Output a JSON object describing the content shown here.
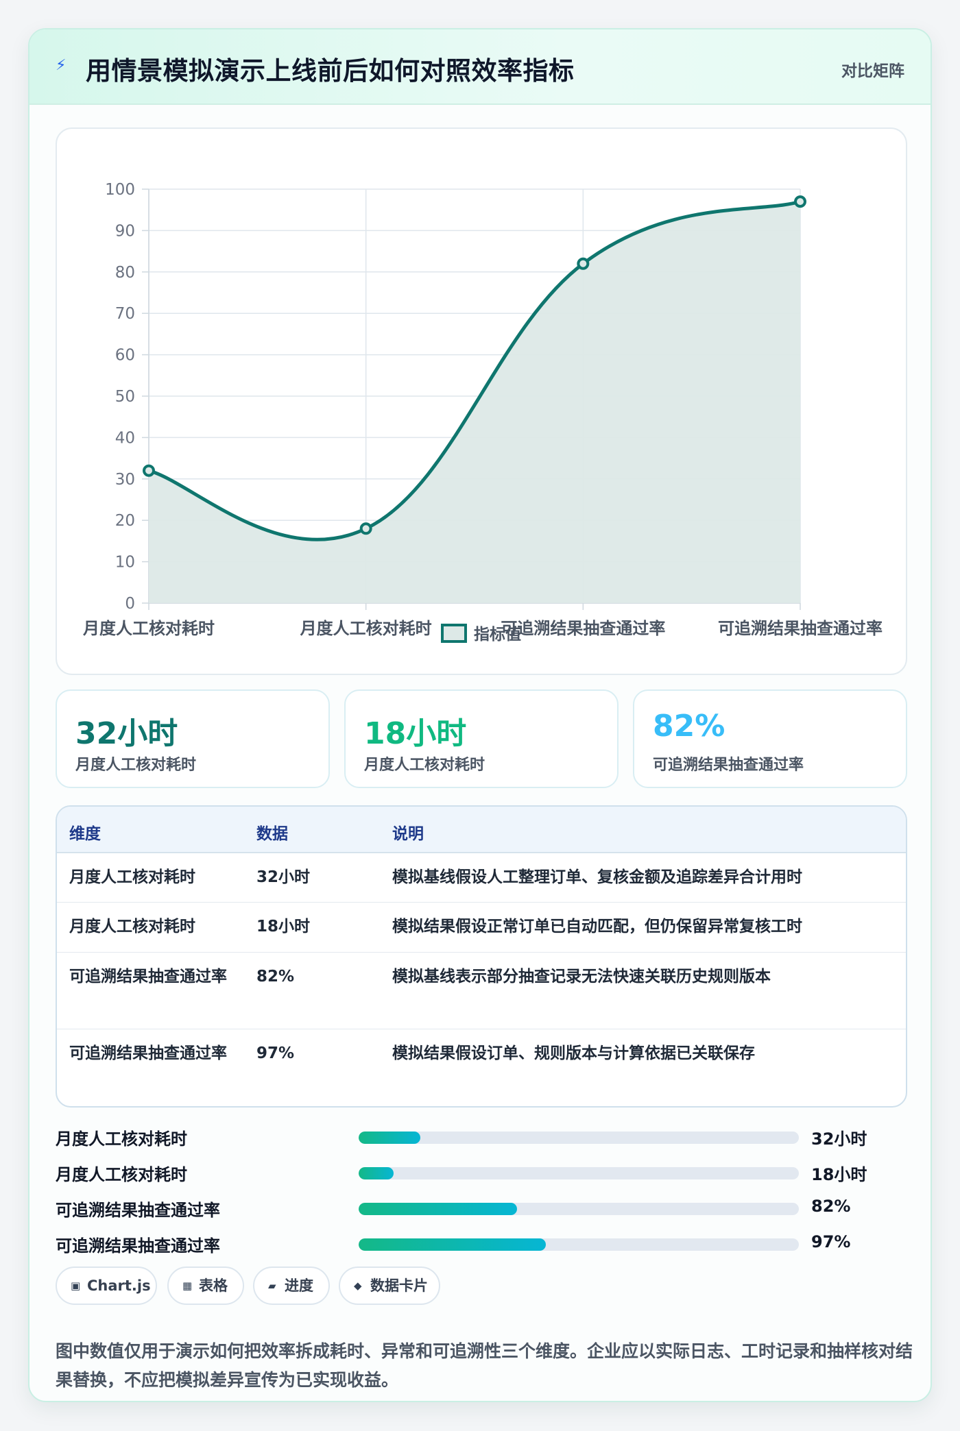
{
  "header": {
    "title": "用情景模拟演示上线前后如何对照效率指标",
    "badge": "对比矩阵"
  },
  "chart_data": {
    "type": "line",
    "categories": [
      "月度人工核对耗时",
      "月度人工核对耗时",
      "可追溯结果抽查通过率",
      "可追溯结果抽查通过率"
    ],
    "series": [
      {
        "name": "指标值",
        "values": [
          32,
          18,
          82,
          97
        ]
      }
    ],
    "ylim": [
      0,
      100
    ],
    "yticks": [
      0,
      10,
      20,
      30,
      40,
      50,
      60,
      70,
      80,
      90,
      100
    ],
    "grid": true,
    "fill": true,
    "smooth": true,
    "legend": "bottom",
    "colors": {
      "line": "#0f766e",
      "fill": "#dde9e7"
    }
  },
  "kpis": [
    {
      "value": "32小时",
      "label": "月度人工核对耗时",
      "color": "#0f766e"
    },
    {
      "value": "18小时",
      "label": "月度人工核对耗时",
      "color": "#10b981"
    },
    {
      "value": "82%",
      "label": "可追溯结果抽查通过率",
      "color": "#38bdf8"
    }
  ],
  "table": {
    "headers": [
      "维度",
      "数据",
      "说明"
    ],
    "rows": [
      [
        "月度人工核对耗时",
        "32小时",
        "模拟基线假设人工整理订单、复核金额及追踪差异合计用时"
      ],
      [
        "月度人工核对耗时",
        "18小时",
        "模拟结果假设正常订单已自动匹配，但仍保留异常复核工时"
      ],
      [
        "可追溯结果抽查通过率",
        "82%",
        "模拟基线表示部分抽查记录无法快速关联历史规则版本"
      ],
      [
        "可追溯结果抽查通过率",
        "97%",
        "模拟结果假设订单、规则版本与计算依据已关联保存"
      ]
    ]
  },
  "progress": [
    {
      "label": "月度人工核对耗时",
      "value": "32小时",
      "fraction": 0.14
    },
    {
      "label": "月度人工核对耗时",
      "value": "18小时",
      "fraction": 0.08
    },
    {
      "label": "可追溯结果抽查通过率",
      "value": "82%",
      "fraction": 0.36
    },
    {
      "label": "可追溯结果抽查通过率",
      "value": "97%",
      "fraction": 0.425
    }
  ],
  "tags": [
    {
      "icon": "chart-icon",
      "label": "Chart.js"
    },
    {
      "icon": "table-icon",
      "label": "表格"
    },
    {
      "icon": "progress-icon",
      "label": "进度"
    },
    {
      "icon": "card-icon",
      "label": "数据卡片"
    }
  ],
  "note": "图中数值仅用于演示如何把效率拆成耗时、异常和可追溯性三个维度。企业应以实际日志、工时记录和抽样核对结果替换，不应把模拟差异宣传为已实现收益。"
}
